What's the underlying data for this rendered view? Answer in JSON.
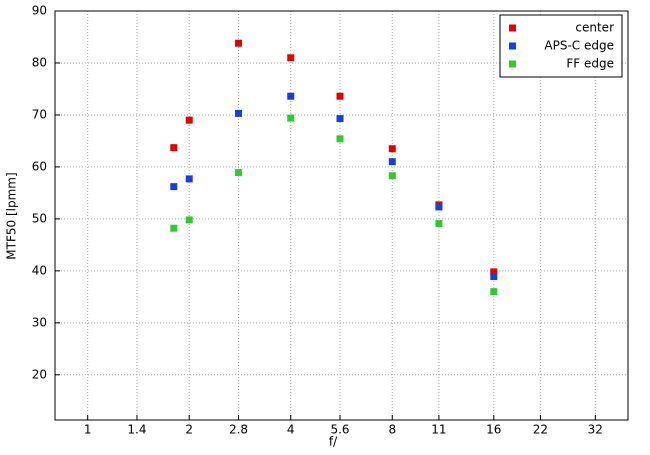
{
  "chart_data": {
    "type": "scatter",
    "x_label": "f/",
    "y_label": "MTF50 [lpmm]",
    "x_log": true,
    "grid": true,
    "legend": "top-right",
    "xlim": [
      0.8,
      40
    ],
    "xticks": [
      1,
      1.4,
      2,
      2.8,
      4,
      5.6,
      8,
      11,
      16,
      22,
      32
    ],
    "ylim": [
      11.3,
      90
    ],
    "yticks": [
      20,
      30,
      40,
      50,
      60,
      70,
      80,
      90
    ],
    "x": [
      1.8,
      2,
      2.8,
      4,
      5.6,
      8,
      11,
      16
    ],
    "series": [
      {
        "name": "center",
        "color": "#e00000",
        "values": [
          63.7,
          69,
          83.8,
          81,
          73.6,
          63.5,
          52.7,
          39.8
        ]
      },
      {
        "name": "APS-C edge",
        "color": "#1a3fd6",
        "values": [
          56.2,
          57.7,
          70.3,
          73.6,
          69.3,
          61,
          52.3,
          38.9
        ]
      },
      {
        "name": "FF edge",
        "color": "#33c833",
        "values": [
          48.2,
          49.8,
          58.9,
          69.4,
          65.4,
          58.3,
          49.1,
          36
        ]
      }
    ]
  }
}
